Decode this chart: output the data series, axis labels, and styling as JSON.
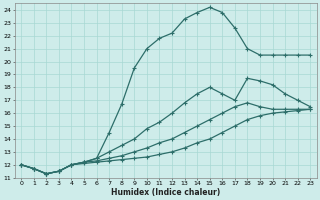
{
  "xlabel": "Humidex (Indice chaleur)",
  "ylabel": "",
  "bg_color": "#ceecea",
  "line_color": "#2d6e6a",
  "grid_color": "#a8d8d4",
  "xlim": [
    -0.5,
    23.5
  ],
  "ylim": [
    11,
    24.5
  ],
  "xticks": [
    0,
    1,
    2,
    3,
    4,
    5,
    6,
    7,
    8,
    9,
    10,
    11,
    12,
    13,
    14,
    15,
    16,
    17,
    18,
    19,
    20,
    21,
    22,
    23
  ],
  "yticks": [
    11,
    12,
    13,
    14,
    15,
    16,
    17,
    18,
    19,
    20,
    21,
    22,
    23,
    24
  ],
  "lines": [
    {
      "x": [
        0,
        1,
        2,
        3,
        4,
        5,
        6,
        7,
        8,
        9,
        10,
        11,
        12,
        13,
        14,
        15,
        16,
        17,
        18,
        19,
        20,
        21,
        22,
        23
      ],
      "y": [
        12.0,
        11.7,
        11.3,
        11.5,
        12.0,
        12.2,
        12.5,
        14.5,
        16.7,
        19.5,
        21.0,
        21.8,
        22.2,
        23.3,
        23.8,
        24.2,
        23.8,
        22.6,
        21.0,
        20.5,
        20.5,
        20.5,
        20.5,
        20.5
      ]
    },
    {
      "x": [
        0,
        1,
        2,
        3,
        4,
        5,
        6,
        7,
        8,
        9,
        10,
        11,
        12,
        13,
        14,
        15,
        16,
        17,
        18,
        19,
        20,
        21,
        22,
        23
      ],
      "y": [
        12.0,
        11.7,
        11.3,
        11.5,
        12.0,
        12.2,
        12.5,
        13.0,
        13.5,
        14.0,
        14.8,
        15.3,
        16.0,
        16.8,
        17.5,
        18.0,
        17.5,
        17.0,
        18.7,
        18.5,
        18.2,
        17.5,
        17.0,
        16.5
      ]
    },
    {
      "x": [
        0,
        1,
        2,
        3,
        4,
        5,
        6,
        7,
        8,
        9,
        10,
        11,
        12,
        13,
        14,
        15,
        16,
        17,
        18,
        19,
        20,
        21,
        22,
        23
      ],
      "y": [
        12.0,
        11.7,
        11.3,
        11.5,
        12.0,
        12.2,
        12.3,
        12.5,
        12.7,
        13.0,
        13.3,
        13.7,
        14.0,
        14.5,
        15.0,
        15.5,
        16.0,
        16.5,
        16.8,
        16.5,
        16.3,
        16.3,
        16.3,
        16.3
      ]
    },
    {
      "x": [
        0,
        1,
        2,
        3,
        4,
        5,
        6,
        7,
        8,
        9,
        10,
        11,
        12,
        13,
        14,
        15,
        16,
        17,
        18,
        19,
        20,
        21,
        22,
        23
      ],
      "y": [
        12.0,
        11.7,
        11.3,
        11.5,
        12.0,
        12.1,
        12.2,
        12.3,
        12.4,
        12.5,
        12.6,
        12.8,
        13.0,
        13.3,
        13.7,
        14.0,
        14.5,
        15.0,
        15.5,
        15.8,
        16.0,
        16.1,
        16.2,
        16.3
      ]
    }
  ]
}
